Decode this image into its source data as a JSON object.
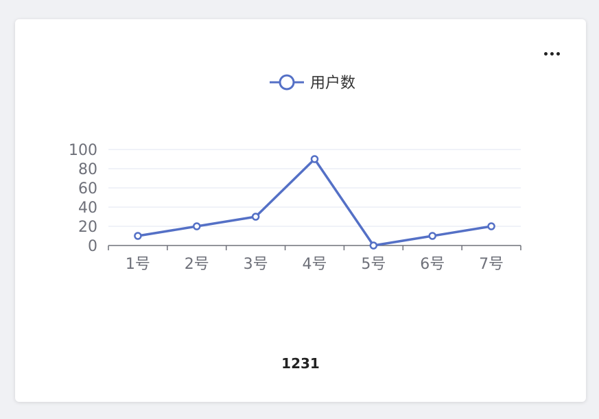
{
  "toolbar": {
    "more_icon": "more-horizontal-icon"
  },
  "chart_data": {
    "type": "line",
    "categories": [
      "1号",
      "2号",
      "3号",
      "4号",
      "5号",
      "6号",
      "7号"
    ],
    "series": [
      {
        "name": "用户数",
        "values": [
          10,
          20,
          30,
          90,
          0,
          10,
          20
        ],
        "color": "#5470c6"
      }
    ],
    "ylim": [
      0,
      100
    ],
    "yticks": [
      "0",
      "20",
      "40",
      "60",
      "80",
      "100"
    ],
    "grid": true,
    "legend": "top-center"
  },
  "footer": {
    "value": "1231"
  }
}
